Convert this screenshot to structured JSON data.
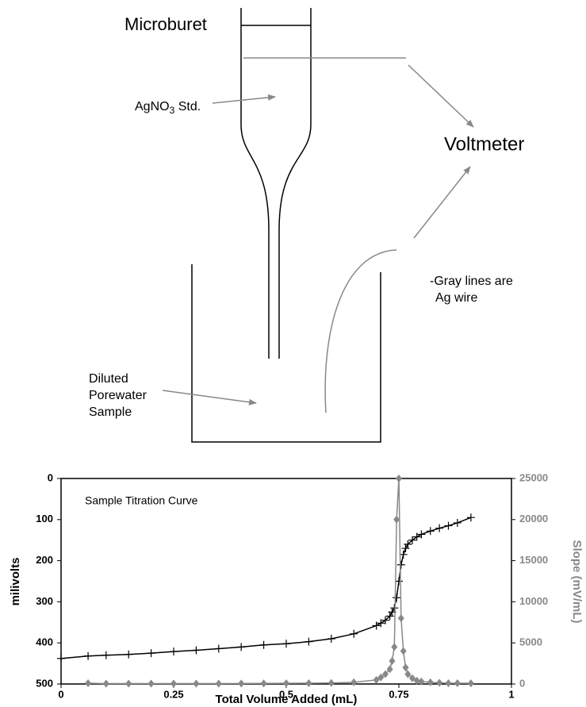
{
  "diagram": {
    "buret_label": "Microburet",
    "std_label": {
      "main": "AgNO",
      "sub": "3",
      "tail": " Std."
    },
    "meter_label": "Voltmeter",
    "note": [
      "-Gray lines are",
      "Ag wire"
    ],
    "sample_label": [
      "Diluted",
      "Porewater",
      "Sample"
    ]
  },
  "chart_data": {
    "type": "line",
    "annotation": "Sample Titration Curve",
    "x_label": "Total Volume Added (mL)",
    "y_label": "milivolts",
    "y2_label": "Slope (mV/mL)",
    "xlim": [
      0,
      1
    ],
    "xticks": [
      0,
      0.25,
      0.5,
      0.75,
      1
    ],
    "ylim": [
      0,
      500
    ],
    "yticks": [
      0,
      100,
      200,
      300,
      400,
      500
    ],
    "y_inverted": true,
    "y2lim": [
      0,
      25000
    ],
    "y2ticks": [
      0,
      5000,
      10000,
      15000,
      20000,
      25000
    ],
    "x": [
      0,
      0.06,
      0.1,
      0.15,
      0.2,
      0.25,
      0.3,
      0.35,
      0.4,
      0.45,
      0.5,
      0.55,
      0.6,
      0.65,
      0.7,
      0.71,
      0.72,
      0.73,
      0.735,
      0.74,
      0.745,
      0.75,
      0.755,
      0.76,
      0.765,
      0.77,
      0.78,
      0.79,
      0.8,
      0.82,
      0.84,
      0.86,
      0.88,
      0.91
    ],
    "series": [
      {
        "color": "#000000",
        "marker": "plus",
        "values": [
          438,
          432,
          430,
          428,
          425,
          421,
          418,
          414,
          410,
          405,
          402,
          397,
          390,
          378,
          358,
          352,
          345,
          335,
          325,
          315,
          290,
          250,
          210,
          185,
          170,
          160,
          150,
          142,
          136,
          128,
          121,
          115,
          108,
          95
        ]
      },
      {
        "color": "#888888",
        "marker": "diamond",
        "axis": "y2",
        "values": [
          null,
          100,
          50,
          50,
          50,
          50,
          50,
          50,
          60,
          70,
          80,
          100,
          120,
          200,
          500,
          800,
          1200,
          1800,
          2800,
          4500,
          20000,
          25000,
          8000,
          4000,
          2000,
          1200,
          700,
          400,
          300,
          200,
          150,
          100,
          100,
          80
        ]
      }
    ]
  }
}
